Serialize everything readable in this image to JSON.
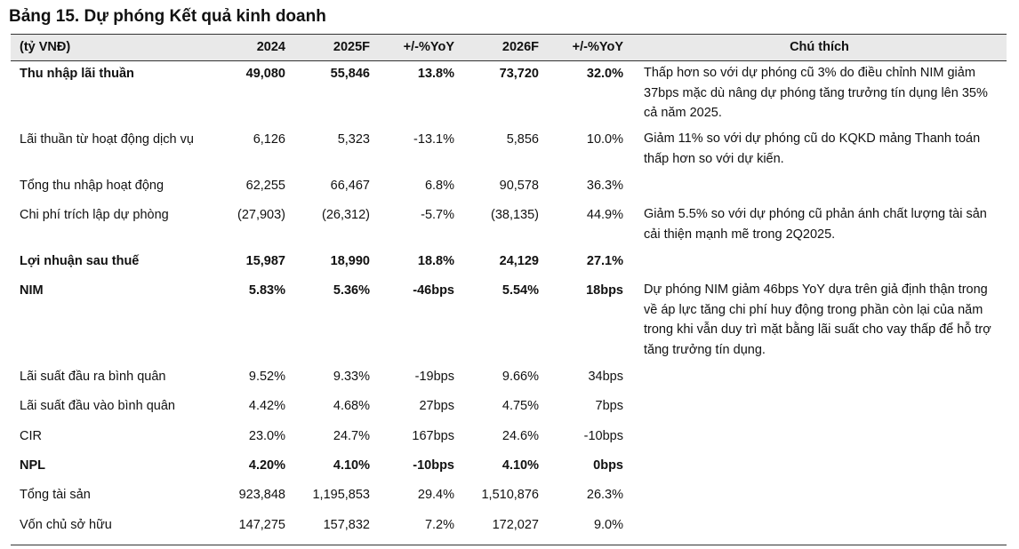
{
  "title": "Bảng 15. Dự phóng Kết quả kinh doanh",
  "header": {
    "unit": "(tỷ VNĐ)",
    "c2024": "2024",
    "c2025": "2025F",
    "cyoy1": "+/-%YoY",
    "c2026": "2026F",
    "cyoy2": "+/-%YoY",
    "note": "Chú thích"
  },
  "rows": [
    {
      "label": "Thu nhập lãi thuần",
      "v2024": "49,080",
      "v2025": "55,846",
      "yoy1": "13.8%",
      "v2026": "73,720",
      "yoy2": "32.0%",
      "bold": true,
      "note": "Thấp hơn so với dự phóng cũ 3% do điều chỉnh NIM giảm 37bps mặc dù nâng dự phóng tăng trưởng tín dụng lên 35% cả năm 2025."
    },
    {
      "label": "Lãi thuần từ hoạt động dịch vụ",
      "v2024": "6,126",
      "v2025": "5,323",
      "yoy1": "-13.1%",
      "v2026": "5,856",
      "yoy2": "10.0%",
      "bold": false,
      "note": "Giảm 11% so với dự phóng cũ do KQKD mảng Thanh toán thấp hơn so với dự kiến."
    },
    {
      "label": "Tổng thu nhập hoạt động",
      "v2024": "62,255",
      "v2025": "66,467",
      "yoy1": "6.8%",
      "v2026": "90,578",
      "yoy2": "36.3%",
      "bold": false,
      "note": ""
    },
    {
      "label": "Chi phí trích lập dự phòng",
      "v2024": "(27,903)",
      "v2025": "(26,312)",
      "yoy1": "-5.7%",
      "v2026": "(38,135)",
      "yoy2": "44.9%",
      "bold": false,
      "note": "Giảm 5.5% so với dự phóng cũ phản ánh chất lượng tài sản cải thiện mạnh mẽ trong 2Q2025."
    },
    {
      "label": "Lợi nhuận sau thuế",
      "v2024": "15,987",
      "v2025": "18,990",
      "yoy1": "18.8%",
      "v2026": "24,129",
      "yoy2": "27.1%",
      "bold": true,
      "note": ""
    },
    {
      "label": "NIM",
      "v2024": "5.83%",
      "v2025": "5.36%",
      "yoy1": "-46bps",
      "v2026": "5.54%",
      "yoy2": "18bps",
      "bold": true,
      "note": "Dự phóng NIM giảm 46bps YoY dựa trên giả định thận trong về áp lực tăng chi phí huy động trong phần còn lại của năm trong khi vẫn duy trì mặt bằng lãi suất cho vay thấp để hỗ trợ tăng trưởng tín dụng."
    },
    {
      "label": "Lãi suất đầu ra bình quân",
      "v2024": "9.52%",
      "v2025": "9.33%",
      "yoy1": "-19bps",
      "v2026": "9.66%",
      "yoy2": "34bps",
      "bold": false,
      "note": ""
    },
    {
      "label": "Lãi suất đầu vào bình quân",
      "v2024": "4.42%",
      "v2025": "4.68%",
      "yoy1": "27bps",
      "v2026": "4.75%",
      "yoy2": "7bps",
      "bold": false,
      "note": ""
    },
    {
      "label": "CIR",
      "v2024": "23.0%",
      "v2025": "24.7%",
      "yoy1": "167bps",
      "v2026": "24.6%",
      "yoy2": "-10bps",
      "bold": false,
      "note": ""
    },
    {
      "label": "NPL",
      "v2024": "4.20%",
      "v2025": "4.10%",
      "yoy1": "-10bps",
      "v2026": "4.10%",
      "yoy2": "0bps",
      "bold": true,
      "note": ""
    },
    {
      "label": "Tổng tài sản",
      "v2024": "923,848",
      "v2025": "1,195,853",
      "yoy1": "29.4%",
      "v2026": "1,510,876",
      "yoy2": "26.3%",
      "bold": false,
      "note": ""
    },
    {
      "label": "Vốn chủ sở hữu",
      "v2024": "147,275",
      "v2025": "157,832",
      "yoy1": "7.2%",
      "v2026": "172,027",
      "yoy2": "9.0%",
      "bold": false,
      "note": ""
    }
  ]
}
